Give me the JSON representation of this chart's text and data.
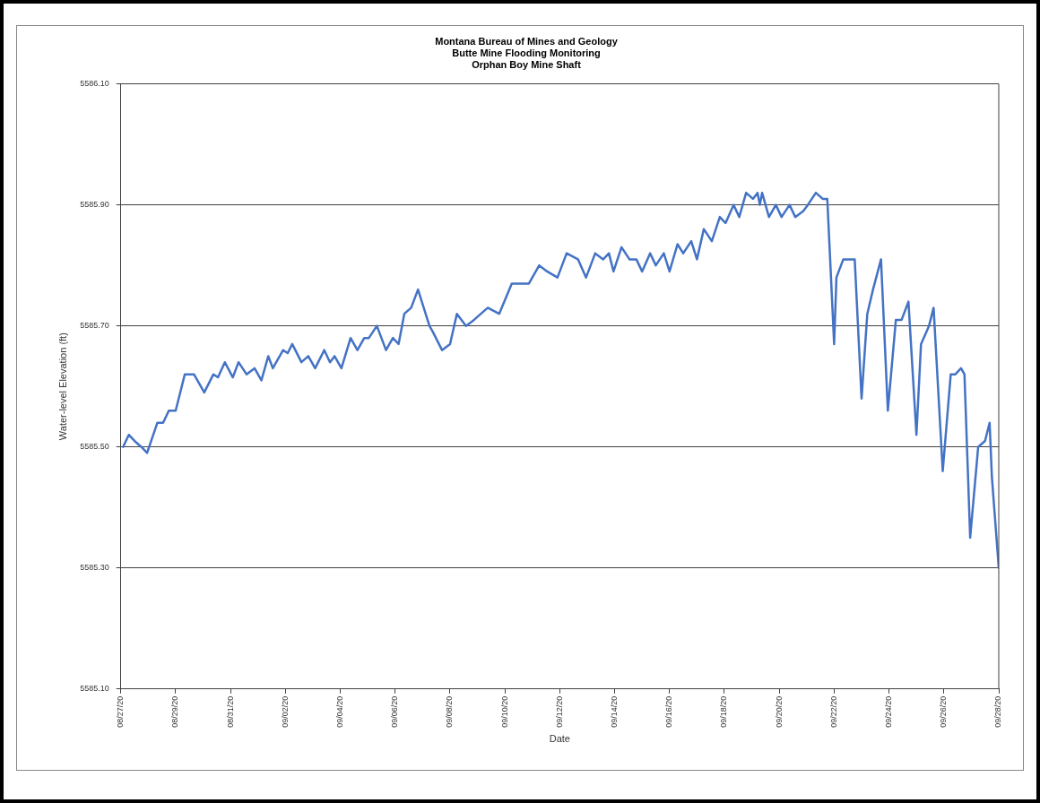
{
  "chart_data": {
    "type": "line",
    "title": "Montana Bureau of Mines and Geology\nButte Mine Flooding Monitoring\nOrphan Boy Mine Shaft",
    "xlabel": "Date",
    "ylabel": "Water-level Elevation (ft)",
    "xlim": [
      "--08-27",
      "--09-28"
    ],
    "xticks": [
      {
        "value": "--08-27",
        "label": "08/27/20"
      },
      {
        "value": "--08-29",
        "label": "08/29/20"
      },
      {
        "value": "--08-31",
        "label": "08/31/20"
      },
      {
        "value": "--09-02",
        "label": "09/02/20"
      },
      {
        "value": "--09-04",
        "label": "09/04/20"
      },
      {
        "value": "--09-06",
        "label": "09/06/20"
      },
      {
        "value": "--09-08",
        "label": "09/08/20"
      },
      {
        "value": "--09-10",
        "label": "09/10/20"
      },
      {
        "value": "--09-12",
        "label": "09/12/20"
      },
      {
        "value": "--09-14",
        "label": "09/14/20"
      },
      {
        "value": "--09-16",
        "label": "09/16/20"
      },
      {
        "value": "--09-18",
        "label": "09/18/20"
      },
      {
        "value": "--09-20",
        "label": "09/20/20"
      },
      {
        "value": "--09-22",
        "label": "09/22/20"
      },
      {
        "value": "--09-24",
        "label": "09/24/20"
      },
      {
        "value": "--09-26",
        "label": "09/26/20"
      },
      {
        "value": "--09-28",
        "label": "09/28/20"
      }
    ],
    "ylim": [
      5585.1,
      5586.1
    ],
    "yticks": [
      {
        "value": 5585.1,
        "label": "5585.10"
      },
      {
        "value": 5585.3,
        "label": "5585.30"
      },
      {
        "value": 5585.5,
        "label": "5585.50"
      },
      {
        "value": 5585.7,
        "label": "5585.70"
      },
      {
        "value": 5585.9,
        "label": "5585.90"
      },
      {
        "value": 5586.1,
        "label": "5586.10"
      }
    ],
    "grid": "y",
    "legend": false,
    "marker": "none",
    "line_style": "solid",
    "series": [
      {
        "color": "#4472c4",
        "x": [
          "--08-27T02:00",
          "--08-27T07:00",
          "--08-27T12:00",
          "--08-27T18:00",
          "--08-27T23:00",
          "--08-28T08:00",
          "--08-28T13:00",
          "--08-28T18:00",
          "--08-29T00:00",
          "--08-29T08:00",
          "--08-29T16:00",
          "--08-30T01:00",
          "--08-30T09:00",
          "--08-30T13:00",
          "--08-30T19:00",
          "--08-31T02:00",
          "--08-31T07:00",
          "--08-31T14:00",
          "--08-31T21:00",
          "--09-01T03:00",
          "--09-01T09:00",
          "--09-01T13:00",
          "--09-01T22:00",
          "--09-02T02:00",
          "--09-02T06:00",
          "--09-02T14:00",
          "--09-02T20:00",
          "--09-03T02:00",
          "--09-03T10:00",
          "--09-03T15:00",
          "--09-03T19:00",
          "--09-04T01:00",
          "--09-04T09:00",
          "--09-04T15:00",
          "--09-04T21:00",
          "--09-05T01:00",
          "--09-05T08:00",
          "--09-05T16:00",
          "--09-05T22:00",
          "--09-06T03:00",
          "--09-06T08:00",
          "--09-06T14:00",
          "--09-06T20:00",
          "--09-07T06:00",
          "--09-07T09:00",
          "--09-07T17:00",
          "--09-08T00:00",
          "--09-08T06:00",
          "--09-08T14:00",
          "--09-08T21:00",
          "--09-09T09:00",
          "--09-09T19:00",
          "--09-10T06:00",
          "--09-10T13:00",
          "--09-10T21:00",
          "--09-11T06:00",
          "--09-11T13:00",
          "--09-11T22:00",
          "--09-12T06:00",
          "--09-12T16:00",
          "--09-12T23:00",
          "--09-13T07:00",
          "--09-13T14:00",
          "--09-13T19:00",
          "--09-13T23:00",
          "--09-14T06:00",
          "--09-14T13:00",
          "--09-14T19:00",
          "--09-15T00:00",
          "--09-15T07:00",
          "--09-15T12:00",
          "--09-15T19:00",
          "--09-16T00:00",
          "--09-16T07:00",
          "--09-16T12:00",
          "--09-16T19:00",
          "--09-17T00:00",
          "--09-17T06:00",
          "--09-17T13:00",
          "--09-17T20:00",
          "--09-18T01:00",
          "--09-18T08:00",
          "--09-18T13:00",
          "--09-18T19:00",
          "--09-19T01:00",
          "--09-19T05:00",
          "--09-19T07:00",
          "--09-19T09:00",
          "--09-19T15:00",
          "--09-19T21:00",
          "--09-20T02:00",
          "--09-20T09:00",
          "--09-20T14:00",
          "--09-20T21:00",
          "--09-21T01:00",
          "--09-21T08:00",
          "--09-21T14:00",
          "--09-21T18:00",
          "--09-22T00:00",
          "--09-22T02:00",
          "--09-22T08:00",
          "--09-22T14:00",
          "--09-22T18:00",
          "--09-23T00:00",
          "--09-23T05:00",
          "--09-23T10:00",
          "--09-23T17:00",
          "--09-23T23:00",
          "--09-24T06:00",
          "--09-24T11:00",
          "--09-24T17:00",
          "--09-25T00:00",
          "--09-25T04:00",
          "--09-25T11:00",
          "--09-25T15:00",
          "--09-25T23:00",
          "--09-26T06:00",
          "--09-26T10:00",
          "--09-26T15:00",
          "--09-26T18:00",
          "--09-26T23:00",
          "--09-27T06:00",
          "--09-27T12:00",
          "--09-27T16:00",
          "--09-27T18:00",
          "--09-28T00:00"
        ],
        "values": [
          5585.5,
          5585.52,
          5585.51,
          5585.5,
          5585.49,
          5585.54,
          5585.54,
          5585.56,
          5585.56,
          5585.62,
          5585.62,
          5585.59,
          5585.62,
          5585.615,
          5585.64,
          5585.615,
          5585.64,
          5585.62,
          5585.63,
          5585.61,
          5585.65,
          5585.63,
          5585.66,
          5585.655,
          5585.67,
          5585.64,
          5585.65,
          5585.63,
          5585.66,
          5585.64,
          5585.65,
          5585.63,
          5585.68,
          5585.66,
          5585.68,
          5585.68,
          5585.7,
          5585.66,
          5585.68,
          5585.67,
          5585.72,
          5585.73,
          5585.76,
          5585.7,
          5585.69,
          5585.66,
          5585.67,
          5585.72,
          5585.7,
          5585.71,
          5585.73,
          5585.72,
          5585.77,
          5585.77,
          5585.77,
          5585.8,
          5585.79,
          5585.78,
          5585.82,
          5585.81,
          5585.78,
          5585.82,
          5585.81,
          5585.82,
          5585.79,
          5585.83,
          5585.81,
          5585.81,
          5585.79,
          5585.82,
          5585.8,
          5585.82,
          5585.79,
          5585.835,
          5585.82,
          5585.84,
          5585.81,
          5585.86,
          5585.84,
          5585.88,
          5585.87,
          5585.9,
          5585.88,
          5585.92,
          5585.91,
          5585.92,
          5585.9,
          5585.92,
          5585.88,
          5585.9,
          5585.88,
          5585.9,
          5585.88,
          5585.89,
          5585.9,
          5585.92,
          5585.91,
          5585.91,
          5585.67,
          5585.78,
          5585.81,
          5585.81,
          5585.81,
          5585.58,
          5585.72,
          5585.76,
          5585.81,
          5585.56,
          5585.71,
          5585.71,
          5585.74,
          5585.52,
          5585.67,
          5585.7,
          5585.73,
          5585.46,
          5585.62,
          5585.62,
          5585.63,
          5585.62,
          5585.35,
          5585.5,
          5585.51,
          5585.54,
          5585.45,
          5585.3
        ]
      }
    ]
  }
}
